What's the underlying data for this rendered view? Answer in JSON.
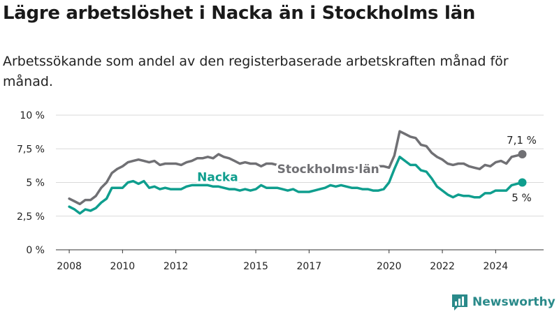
{
  "title": "Lägre arbetslöshet i Nacka än i Stockholms län",
  "subtitle": "Arbetssökande som andel av den registerbaserade arbetskraften månad för månad.",
  "brand": "Newsworthy",
  "colors": {
    "stockholm": "#707074",
    "nacka": "#0f9e8e",
    "grid": "#d9d9d9",
    "axis": "#333333",
    "brand": "#2a8a8a"
  },
  "chart_data": {
    "type": "line",
    "y_ticks": [
      {
        "value": 0,
        "label": "0 %"
      },
      {
        "value": 2.5,
        "label": "2,5 %"
      },
      {
        "value": 5,
        "label": "5 %"
      },
      {
        "value": 7.5,
        "label": "7,5 %"
      },
      {
        "value": 10,
        "label": "10 %"
      }
    ],
    "x_ticks": [
      2008,
      2010,
      2012,
      2015,
      2017,
      2020,
      2022,
      2024
    ],
    "ylim": [
      0,
      10
    ],
    "xlim": [
      2007.5,
      2025.8
    ],
    "grid": true,
    "series": [
      {
        "name": "Stockholms län",
        "color": "#707074",
        "end_label": "7,1 %",
        "x": [
          2008.0,
          2008.2,
          2008.4,
          2008.6,
          2008.8,
          2009.0,
          2009.2,
          2009.4,
          2009.6,
          2009.8,
          2010.0,
          2010.2,
          2010.4,
          2010.6,
          2010.8,
          2011.0,
          2011.2,
          2011.4,
          2011.6,
          2011.8,
          2012.0,
          2012.2,
          2012.4,
          2012.6,
          2012.8,
          2013.0,
          2013.2,
          2013.4,
          2013.6,
          2013.8,
          2014.0,
          2014.2,
          2014.4,
          2014.6,
          2014.8,
          2015.0,
          2015.2,
          2015.4,
          2015.6,
          2015.8,
          2016.0,
          2016.2,
          2016.4,
          2016.6,
          2016.8,
          2017.0,
          2017.2,
          2017.4,
          2017.6,
          2017.8,
          2018.0,
          2018.2,
          2018.4,
          2018.6,
          2018.8,
          2019.0,
          2019.2,
          2019.4,
          2019.6,
          2019.8,
          2020.0,
          2020.2,
          2020.4,
          2020.6,
          2020.8,
          2021.0,
          2021.2,
          2021.4,
          2021.6,
          2021.8,
          2022.0,
          2022.2,
          2022.4,
          2022.6,
          2022.8,
          2023.0,
          2023.2,
          2023.4,
          2023.6,
          2023.8,
          2024.0,
          2024.2,
          2024.4,
          2024.6,
          2024.8,
          2025.0
        ],
        "y": [
          3.8,
          3.6,
          3.4,
          3.7,
          3.7,
          4.0,
          4.6,
          5.0,
          5.7,
          6.0,
          6.2,
          6.5,
          6.6,
          6.7,
          6.6,
          6.5,
          6.6,
          6.3,
          6.4,
          6.4,
          6.4,
          6.3,
          6.5,
          6.6,
          6.8,
          6.8,
          6.9,
          6.8,
          7.1,
          6.9,
          6.8,
          6.6,
          6.4,
          6.5,
          6.4,
          6.4,
          6.2,
          6.4,
          6.4,
          6.3,
          6.2,
          6.1,
          6.1,
          6.1,
          6.1,
          6.0,
          6.1,
          6.1,
          6.1,
          6.1,
          6.1,
          6.1,
          6.1,
          6.1,
          6.1,
          6.1,
          6.1,
          6.1,
          6.2,
          6.2,
          6.1,
          7.0,
          8.8,
          8.6,
          8.4,
          8.3,
          7.8,
          7.7,
          7.2,
          6.9,
          6.7,
          6.4,
          6.3,
          6.4,
          6.4,
          6.2,
          6.1,
          6.0,
          6.3,
          6.2,
          6.5,
          6.6,
          6.4,
          6.9,
          7.0,
          7.1
        ]
      },
      {
        "name": "Nacka",
        "color": "#0f9e8e",
        "end_label": "5 %",
        "x": [
          2008.0,
          2008.2,
          2008.4,
          2008.6,
          2008.8,
          2009.0,
          2009.2,
          2009.4,
          2009.6,
          2009.8,
          2010.0,
          2010.2,
          2010.4,
          2010.6,
          2010.8,
          2011.0,
          2011.2,
          2011.4,
          2011.6,
          2011.8,
          2012.0,
          2012.2,
          2012.4,
          2012.6,
          2012.8,
          2013.0,
          2013.2,
          2013.4,
          2013.6,
          2013.8,
          2014.0,
          2014.2,
          2014.4,
          2014.6,
          2014.8,
          2015.0,
          2015.2,
          2015.4,
          2015.6,
          2015.8,
          2016.0,
          2016.2,
          2016.4,
          2016.6,
          2016.8,
          2017.0,
          2017.2,
          2017.4,
          2017.6,
          2017.8,
          2018.0,
          2018.2,
          2018.4,
          2018.6,
          2018.8,
          2019.0,
          2019.2,
          2019.4,
          2019.6,
          2019.8,
          2020.0,
          2020.2,
          2020.4,
          2020.6,
          2020.8,
          2021.0,
          2021.2,
          2021.4,
          2021.6,
          2021.8,
          2022.0,
          2022.2,
          2022.4,
          2022.6,
          2022.8,
          2023.0,
          2023.2,
          2023.4,
          2023.6,
          2023.8,
          2024.0,
          2024.2,
          2024.4,
          2024.6,
          2024.8,
          2025.0
        ],
        "y": [
          3.2,
          3.0,
          2.7,
          3.0,
          2.9,
          3.1,
          3.5,
          3.8,
          4.6,
          4.6,
          4.6,
          5.0,
          5.1,
          4.9,
          5.1,
          4.6,
          4.7,
          4.5,
          4.6,
          4.5,
          4.5,
          4.5,
          4.7,
          4.8,
          4.8,
          4.8,
          4.8,
          4.7,
          4.7,
          4.6,
          4.5,
          4.5,
          4.4,
          4.5,
          4.4,
          4.5,
          4.8,
          4.6,
          4.6,
          4.6,
          4.5,
          4.4,
          4.5,
          4.3,
          4.3,
          4.3,
          4.4,
          4.5,
          4.6,
          4.8,
          4.7,
          4.8,
          4.7,
          4.6,
          4.6,
          4.5,
          4.5,
          4.4,
          4.4,
          4.5,
          5.0,
          6.0,
          6.9,
          6.6,
          6.3,
          6.3,
          5.9,
          5.8,
          5.3,
          4.7,
          4.4,
          4.1,
          3.9,
          4.1,
          4.0,
          4.0,
          3.9,
          3.9,
          4.2,
          4.2,
          4.4,
          4.4,
          4.4,
          4.8,
          4.9,
          5.0
        ]
      }
    ]
  }
}
